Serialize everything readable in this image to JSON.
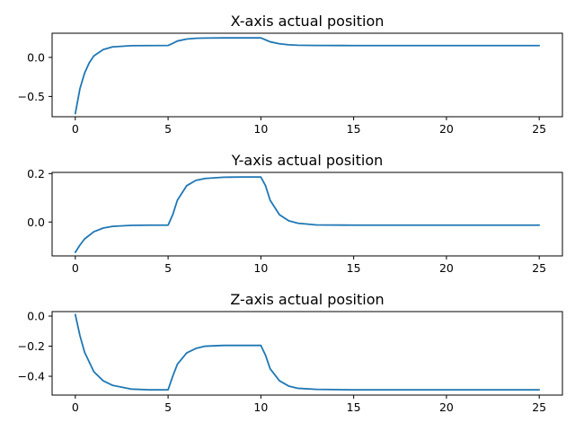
{
  "chart_data": [
    {
      "type": "line",
      "title": "X-axis actual position",
      "xlim": [
        -1.25,
        26.25
      ],
      "ylim": [
        -0.76,
        0.31
      ],
      "xticks": [
        0,
        5,
        10,
        15,
        20,
        25
      ],
      "xtick_labels": [
        "0",
        "5",
        "10",
        "15",
        "20",
        "25"
      ],
      "yticks": [
        0.0,
        -0.5
      ],
      "ytick_labels": [
        "0.0",
        "−0.5"
      ],
      "grid": false,
      "color": "#1f77b4",
      "x": [
        0,
        0.25,
        0.5,
        0.75,
        1,
        1.5,
        2,
        3,
        4,
        5,
        5.25,
        5.5,
        6,
        6.5,
        7,
        8,
        9,
        10,
        10.25,
        10.5,
        11,
        11.5,
        12,
        13,
        15,
        20,
        25
      ],
      "y": [
        -0.72,
        -0.4,
        -0.2,
        -0.07,
        0.02,
        0.1,
        0.135,
        0.15,
        0.152,
        0.153,
        0.18,
        0.21,
        0.235,
        0.245,
        0.248,
        0.25,
        0.25,
        0.25,
        0.225,
        0.2,
        0.175,
        0.162,
        0.156,
        0.153,
        0.152,
        0.152,
        0.152
      ]
    },
    {
      "type": "line",
      "title": "Y-axis actual position",
      "xlim": [
        -1.25,
        26.25
      ],
      "ylim": [
        -0.14,
        0.205
      ],
      "xticks": [
        0,
        5,
        10,
        15,
        20,
        25
      ],
      "xtick_labels": [
        "0",
        "5",
        "10",
        "15",
        "20",
        "25"
      ],
      "yticks": [
        0.2,
        0.0
      ],
      "ytick_labels": [
        "0.2",
        "0.0"
      ],
      "grid": false,
      "color": "#1f77b4",
      "x": [
        0,
        0.25,
        0.5,
        1,
        1.5,
        2,
        3,
        4,
        5,
        5.25,
        5.5,
        6,
        6.5,
        7,
        8,
        9,
        10,
        10.25,
        10.5,
        11,
        11.5,
        12,
        13,
        15,
        20,
        25
      ],
      "y": [
        -0.125,
        -0.095,
        -0.07,
        -0.04,
        -0.025,
        -0.018,
        -0.014,
        -0.013,
        -0.013,
        0.03,
        0.09,
        0.15,
        0.172,
        0.18,
        0.185,
        0.186,
        0.186,
        0.15,
        0.09,
        0.03,
        0.005,
        -0.005,
        -0.012,
        -0.013,
        -0.013,
        -0.013
      ]
    },
    {
      "type": "line",
      "title": "Z-axis actual position",
      "xlim": [
        -1.25,
        26.25
      ],
      "ylim": [
        -0.525,
        0.03
      ],
      "xticks": [
        0,
        5,
        10,
        15,
        20,
        25
      ],
      "xtick_labels": [
        "0",
        "5",
        "10",
        "15",
        "20",
        "25"
      ],
      "yticks": [
        0.0,
        -0.2,
        -0.4
      ],
      "ytick_labels": [
        "0.0",
        "−0.2",
        "−0.4"
      ],
      "grid": false,
      "color": "#1f77b4",
      "x": [
        0,
        0.25,
        0.5,
        1,
        1.5,
        2,
        3,
        4,
        5,
        5.25,
        5.5,
        6,
        6.5,
        7,
        8,
        9,
        10,
        10.25,
        10.5,
        11,
        11.5,
        12,
        13,
        15,
        20,
        25
      ],
      "y": [
        0.01,
        -0.13,
        -0.24,
        -0.37,
        -0.43,
        -0.46,
        -0.485,
        -0.49,
        -0.49,
        -0.4,
        -0.32,
        -0.245,
        -0.215,
        -0.2,
        -0.195,
        -0.195,
        -0.195,
        -0.26,
        -0.35,
        -0.43,
        -0.465,
        -0.48,
        -0.487,
        -0.49,
        -0.49,
        -0.49
      ]
    }
  ]
}
